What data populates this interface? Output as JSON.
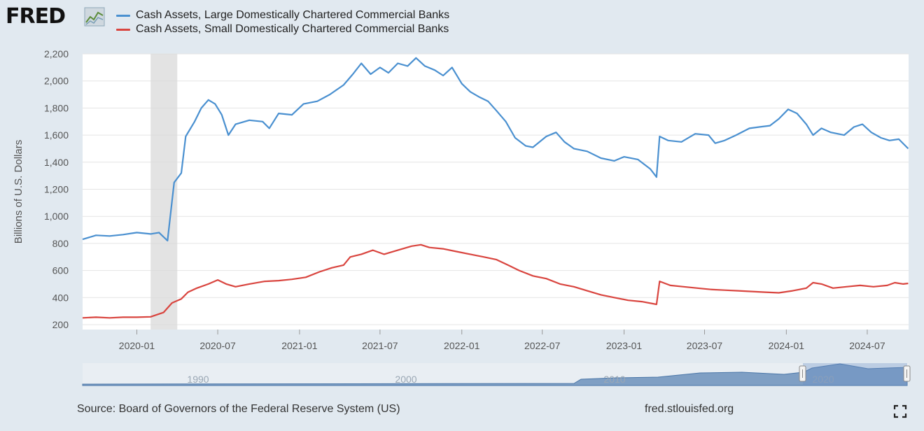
{
  "header": {
    "logo_text": "FRED",
    "logo_icon": "line-chart-icon"
  },
  "legend": [
    {
      "label": "Cash Assets, Large Domestically Chartered Commercial Banks",
      "color": "#4a90d0"
    },
    {
      "label": "Cash Assets, Small Domestically Chartered Commercial Banks",
      "color": "#d9453f"
    }
  ],
  "footer": {
    "source": "Source: Board of Governors of the Federal Reserve System (US)",
    "site": "fred.stlouisfed.org",
    "fullscreen_icon": "expand-icon"
  },
  "navigator": {
    "year_labels": [
      "1990",
      "2000",
      "2010",
      "2020"
    ]
  },
  "chart_data": {
    "type": "line",
    "ylabel": "Billions of U.S. Dollars",
    "ylim": [
      200,
      2200
    ],
    "yticks": [
      200,
      400,
      600,
      800,
      1000,
      1200,
      1400,
      1600,
      1800,
      2000,
      2200
    ],
    "ytick_labels": [
      "200",
      "400",
      "600",
      "800",
      "1,000",
      "1,200",
      "1,400",
      "1,600",
      "1,800",
      "2,000",
      "2,200"
    ],
    "xlim": [
      "2019-09-01",
      "2024-10-02"
    ],
    "xticks": [
      "2020-01",
      "2020-07",
      "2021-01",
      "2021-07",
      "2022-01",
      "2022-07",
      "2023-01",
      "2023-07",
      "2024-01",
      "2024-07"
    ],
    "grid": "horizontal",
    "recession_shading": [
      "2020-02-01",
      "2020-04-01"
    ],
    "series": [
      {
        "name": "Cash Assets, Large Domestically Chartered Commercial Banks",
        "color": "#4a90d0",
        "points": [
          [
            "2019-09-01",
            830
          ],
          [
            "2019-10-01",
            860
          ],
          [
            "2019-11-01",
            855
          ],
          [
            "2019-12-01",
            865
          ],
          [
            "2020-01-01",
            880
          ],
          [
            "2020-02-01",
            870
          ],
          [
            "2020-02-20",
            880
          ],
          [
            "2020-03-10",
            820
          ],
          [
            "2020-03-25",
            1250
          ],
          [
            "2020-04-10",
            1320
          ],
          [
            "2020-04-20",
            1590
          ],
          [
            "2020-05-10",
            1700
          ],
          [
            "2020-05-25",
            1800
          ],
          [
            "2020-06-10",
            1860
          ],
          [
            "2020-06-25",
            1830
          ],
          [
            "2020-07-10",
            1750
          ],
          [
            "2020-07-25",
            1600
          ],
          [
            "2020-08-10",
            1680
          ],
          [
            "2020-09-10",
            1710
          ],
          [
            "2020-10-10",
            1700
          ],
          [
            "2020-10-25",
            1650
          ],
          [
            "2020-11-15",
            1760
          ],
          [
            "2020-12-15",
            1750
          ],
          [
            "2021-01-10",
            1830
          ],
          [
            "2021-02-10",
            1850
          ],
          [
            "2021-03-10",
            1900
          ],
          [
            "2021-04-10",
            1970
          ],
          [
            "2021-05-01",
            2050
          ],
          [
            "2021-05-20",
            2130
          ],
          [
            "2021-06-10",
            2050
          ],
          [
            "2021-07-01",
            2100
          ],
          [
            "2021-07-20",
            2060
          ],
          [
            "2021-08-10",
            2130
          ],
          [
            "2021-09-01",
            2110
          ],
          [
            "2021-09-20",
            2170
          ],
          [
            "2021-10-10",
            2110
          ],
          [
            "2021-11-01",
            2080
          ],
          [
            "2021-11-20",
            2040
          ],
          [
            "2021-12-10",
            2100
          ],
          [
            "2022-01-01",
            1980
          ],
          [
            "2022-01-20",
            1920
          ],
          [
            "2022-02-10",
            1880
          ],
          [
            "2022-03-01",
            1850
          ],
          [
            "2022-03-20",
            1780
          ],
          [
            "2022-04-10",
            1700
          ],
          [
            "2022-05-01",
            1580
          ],
          [
            "2022-05-25",
            1520
          ],
          [
            "2022-06-10",
            1510
          ],
          [
            "2022-07-10",
            1590
          ],
          [
            "2022-08-01",
            1620
          ],
          [
            "2022-08-20",
            1550
          ],
          [
            "2022-09-10",
            1500
          ],
          [
            "2022-10-10",
            1480
          ],
          [
            "2022-11-10",
            1430
          ],
          [
            "2022-12-10",
            1410
          ],
          [
            "2023-01-01",
            1440
          ],
          [
            "2023-02-01",
            1420
          ],
          [
            "2023-03-01",
            1350
          ],
          [
            "2023-03-15",
            1290
          ],
          [
            "2023-03-22",
            1590
          ],
          [
            "2023-04-10",
            1560
          ],
          [
            "2023-05-10",
            1550
          ],
          [
            "2023-06-10",
            1610
          ],
          [
            "2023-07-10",
            1600
          ],
          [
            "2023-07-25",
            1540
          ],
          [
            "2023-08-15",
            1560
          ],
          [
            "2023-09-10",
            1600
          ],
          [
            "2023-10-10",
            1650
          ],
          [
            "2023-11-01",
            1660
          ],
          [
            "2023-11-25",
            1670
          ],
          [
            "2023-12-15",
            1720
          ],
          [
            "2024-01-05",
            1790
          ],
          [
            "2024-01-25",
            1760
          ],
          [
            "2024-02-15",
            1680
          ],
          [
            "2024-03-01",
            1600
          ],
          [
            "2024-03-20",
            1650
          ],
          [
            "2024-04-10",
            1620
          ],
          [
            "2024-05-10",
            1600
          ],
          [
            "2024-06-01",
            1660
          ],
          [
            "2024-06-20",
            1680
          ],
          [
            "2024-07-10",
            1620
          ],
          [
            "2024-08-01",
            1580
          ],
          [
            "2024-08-20",
            1560
          ],
          [
            "2024-09-10",
            1570
          ],
          [
            "2024-10-01",
            1500
          ]
        ]
      },
      {
        "name": "Cash Assets, Small Domestically Chartered Commercial Banks",
        "color": "#d9453f",
        "points": [
          [
            "2019-09-01",
            250
          ],
          [
            "2019-10-01",
            255
          ],
          [
            "2019-11-01",
            250
          ],
          [
            "2019-12-01",
            255
          ],
          [
            "2020-01-01",
            255
          ],
          [
            "2020-02-01",
            258
          ],
          [
            "2020-03-01",
            290
          ],
          [
            "2020-03-20",
            360
          ],
          [
            "2020-04-10",
            390
          ],
          [
            "2020-04-25",
            440
          ],
          [
            "2020-05-15",
            470
          ],
          [
            "2020-06-10",
            500
          ],
          [
            "2020-07-01",
            530
          ],
          [
            "2020-07-20",
            500
          ],
          [
            "2020-08-10",
            480
          ],
          [
            "2020-09-10",
            500
          ],
          [
            "2020-10-15",
            520
          ],
          [
            "2020-11-15",
            525
          ],
          [
            "2020-12-15",
            535
          ],
          [
            "2021-01-15",
            550
          ],
          [
            "2021-02-15",
            590
          ],
          [
            "2021-03-15",
            620
          ],
          [
            "2021-04-10",
            640
          ],
          [
            "2021-04-25",
            700
          ],
          [
            "2021-05-20",
            720
          ],
          [
            "2021-06-15",
            750
          ],
          [
            "2021-07-10",
            720
          ],
          [
            "2021-08-10",
            750
          ],
          [
            "2021-09-10",
            780
          ],
          [
            "2021-10-01",
            790
          ],
          [
            "2021-10-20",
            770
          ],
          [
            "2021-11-20",
            760
          ],
          [
            "2021-12-20",
            740
          ],
          [
            "2022-01-20",
            720
          ],
          [
            "2022-02-20",
            700
          ],
          [
            "2022-03-20",
            680
          ],
          [
            "2022-04-15",
            640
          ],
          [
            "2022-05-10",
            600
          ],
          [
            "2022-06-10",
            560
          ],
          [
            "2022-07-10",
            540
          ],
          [
            "2022-08-10",
            500
          ],
          [
            "2022-09-10",
            480
          ],
          [
            "2022-10-10",
            450
          ],
          [
            "2022-11-10",
            420
          ],
          [
            "2022-12-10",
            400
          ],
          [
            "2023-01-10",
            380
          ],
          [
            "2023-02-10",
            370
          ],
          [
            "2023-03-15",
            350
          ],
          [
            "2023-03-22",
            520
          ],
          [
            "2023-04-15",
            490
          ],
          [
            "2023-05-15",
            480
          ],
          [
            "2023-06-15",
            470
          ],
          [
            "2023-07-15",
            460
          ],
          [
            "2023-08-15",
            455
          ],
          [
            "2023-09-15",
            450
          ],
          [
            "2023-10-15",
            445
          ],
          [
            "2023-11-15",
            440
          ],
          [
            "2023-12-15",
            435
          ],
          [
            "2024-01-15",
            450
          ],
          [
            "2024-02-15",
            470
          ],
          [
            "2024-03-01",
            510
          ],
          [
            "2024-03-20",
            500
          ],
          [
            "2024-04-15",
            470
          ],
          [
            "2024-05-15",
            480
          ],
          [
            "2024-06-15",
            490
          ],
          [
            "2024-07-15",
            480
          ],
          [
            "2024-08-15",
            490
          ],
          [
            "2024-09-01",
            510
          ],
          [
            "2024-09-20",
            500
          ],
          [
            "2024-10-01",
            505
          ]
        ]
      }
    ]
  }
}
